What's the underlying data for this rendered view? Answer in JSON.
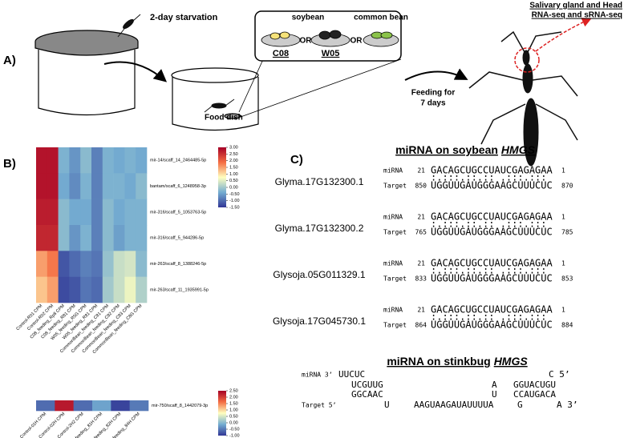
{
  "panel_a": {
    "label": "A)",
    "starvation": "2-day starvation",
    "soybean": "soybean",
    "common_bean": "common bean",
    "soy_lines": [
      "C08",
      "W05"
    ],
    "or": [
      "OR",
      "OR"
    ],
    "food_dish": "Food dish",
    "feeding": [
      "Feeding for",
      "7 days"
    ],
    "tissue": [
      "Salivary gland and Head",
      "RNA-seq and sRNA-seq"
    ]
  },
  "panel_b": {
    "label": "B)"
  },
  "chart_data": [
    {
      "type": "heatmap",
      "rows": [
        "mir-14/scaff_14_2464485-5p",
        "bantam/scaff_6_1248958-3p",
        "mir-316/scaff_5_1053763-5p",
        "mir-316/scaff_5_944286-5p",
        "mir-263/scaff_8_1388246-5p",
        "mir-263/scaff_11_1935991-5p"
      ],
      "columns": [
        "Control-R01 CPM",
        "Control-R02 CPM",
        "C08_feeding_Rp8 CPM",
        "C08_feeding_R81 CPM",
        "W05_feeding_R5G CPM",
        "W05_feeding_R81 CPM",
        "CommonBean_feeding_C81 CPM",
        "CommonBean_feeding_C82 CPM",
        "CommonBean_feeding_C83 CPM",
        "CommonBean_feeding_C8G CPM"
      ],
      "values": [
        [
          2.8,
          2.8,
          -0.3,
          -0.6,
          -0.2,
          -0.8,
          -0.3,
          -0.4,
          -0.3,
          -0.4
        ],
        [
          2.8,
          2.8,
          -0.4,
          -0.7,
          -0.3,
          -0.8,
          -0.3,
          -0.3,
          -0.4,
          -0.2
        ],
        [
          2.7,
          2.7,
          -0.2,
          -0.4,
          -0.4,
          -0.8,
          -0.2,
          -0.4,
          -0.3,
          -0.3
        ],
        [
          2.6,
          2.6,
          -0.2,
          -0.6,
          -0.3,
          -0.8,
          -0.2,
          -0.5,
          -0.3,
          -0.3
        ],
        [
          1.5,
          1.8,
          -1.2,
          -1.0,
          -0.8,
          -0.9,
          -0.1,
          0.3,
          0.4,
          -0.2
        ],
        [
          1.2,
          1.5,
          -1.3,
          -1.2,
          -0.9,
          -1.0,
          0.0,
          0.3,
          0.6,
          0.1
        ]
      ],
      "clim": [
        -1.5,
        3
      ],
      "cticks": [
        {
          "value": 3,
          "label": "3.00"
        },
        {
          "value": 2.5,
          "label": "2.50"
        },
        {
          "value": 2,
          "label": "2.00"
        },
        {
          "value": 1.5,
          "label": "1.50"
        },
        {
          "value": 1,
          "label": "1.00"
        },
        {
          "value": 0.5,
          "label": "0.50"
        },
        {
          "value": 0,
          "label": "0.00"
        },
        {
          "value": -0.5,
          "label": "-0.50"
        },
        {
          "value": -1,
          "label": "-1.00"
        },
        {
          "value": -1.5,
          "label": "-1.50"
        }
      ],
      "colormap": [
        "#313695",
        "#74add1",
        "#ffffbf",
        "#f46d43",
        "#a50026"
      ]
    },
    {
      "type": "heatmap",
      "rows": [
        "mir-750/scaff_8_1442079-3p"
      ],
      "columns": [
        "Control-01H CPM",
        "Control-02H CPM",
        "Control-2H2 CPM",
        "C08_feeding_81H CPM",
        "C08_feeding_82H CPM",
        "C08_feeding_84H CPM"
      ],
      "values": [
        [
          -0.6,
          2.3,
          -0.6,
          -0.2,
          -0.9,
          -0.5
        ]
      ],
      "clim": [
        -1,
        2.5
      ],
      "cticks": [
        {
          "value": 2.5,
          "label": "2.50"
        },
        {
          "value": 2,
          "label": "2.00"
        },
        {
          "value": 1.5,
          "label": "1.50"
        },
        {
          "value": 1,
          "label": "1.00"
        },
        {
          "value": 0.5,
          "label": "0.50"
        },
        {
          "value": 0,
          "label": "0.00"
        },
        {
          "value": -0.5,
          "label": "-0.50"
        },
        {
          "value": -1,
          "label": "-1.00"
        }
      ],
      "colormap": [
        "#313695",
        "#74add1",
        "#ffffbf",
        "#f46d43",
        "#a50026"
      ]
    }
  ],
  "panel_c": {
    "label": "C)",
    "soybean_title": {
      "text": "miRNA on soybean",
      "gene": "HMGS"
    },
    "alignments": [
      {
        "gene": "Glyma.17G132300.1",
        "mirna_tag": "miRNA",
        "mirna_start": 21,
        "mirna_seq": "GACAGCUGCCUAUCGAGAGAA",
        "mirna_end": 1,
        "pairs": ":.:::.::.:: .:::.:::",
        "target_tag": "Target",
        "target_start": 850,
        "target_seq": "UGGUUGAUGGGAAGCUUUCUC",
        "target_end": 870
      },
      {
        "gene": "Glyma.17G132300.2",
        "mirna_tag": "miRNA",
        "mirna_start": 21,
        "mirna_seq": "GACAGCUGCCUAUCGAGAGAA",
        "mirna_end": 1,
        "pairs": ":.:::.::.:: .:::.:::",
        "target_tag": "Target",
        "target_start": 765,
        "target_seq": "UGGUUGAUGGGAAGCUUUCUC",
        "target_end": 785
      },
      {
        "gene": "Glysoja.05G011329.1",
        "mirna_tag": "miRNA",
        "mirna_start": 21,
        "mirna_seq": "GACAGCUGCCUAUCGAGAGAA",
        "mirna_end": 1,
        "pairs": ":.:::.::.:: .:::.:::",
        "target_tag": "Target",
        "target_start": 833,
        "target_seq": "UGGUUGAUGGGAAGCUUUCUC",
        "target_end": 853
      },
      {
        "gene": "Glysoja.17G045730.1",
        "mirna_tag": "miRNA",
        "mirna_start": 21,
        "mirna_seq": "GACAGCUGCCUAUCGAGAGAA",
        "mirna_end": 1,
        "pairs": ":.:::.::.:: .:::.:::",
        "target_tag": "Target",
        "target_start": 864,
        "target_seq": "UGGUUGAUGGGAAGCUUUCUC",
        "target_end": 884
      }
    ],
    "stinkbug_title": {
      "text": "miRNA on stinkbug",
      "gene": "HMGS"
    },
    "duplex": [
      [
        "miRNA 3’",
        "UUCUC",
        "C 5’"
      ],
      [
        "UCGUUG",
        "A",
        "GGUACUGU"
      ],
      [
        "GGCAAC",
        "U",
        "CCAUGACA"
      ],
      [
        "Target 5’",
        "U",
        "AAGUAAGAUAUUUUA",
        "G",
        "A 3’"
      ]
    ]
  }
}
